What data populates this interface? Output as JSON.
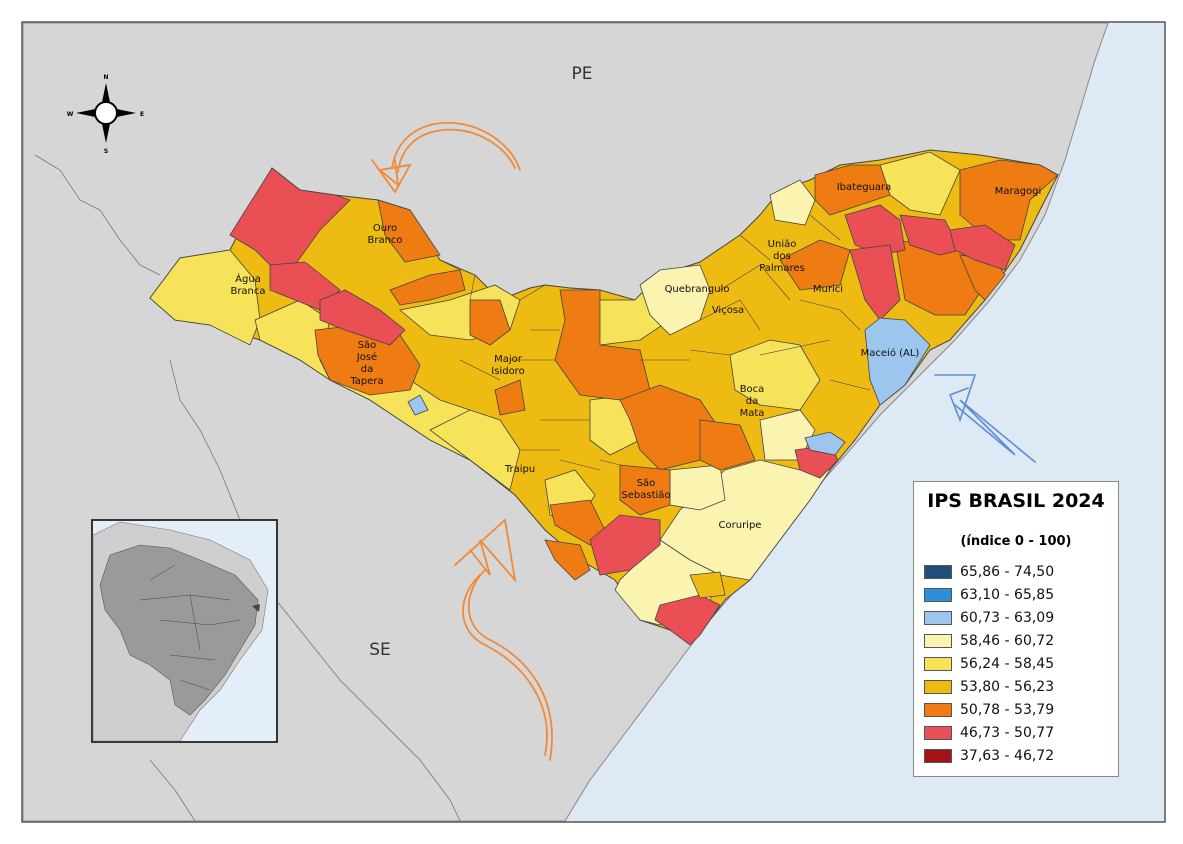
{
  "map": {
    "neighbor_states": [
      "PE",
      "SE"
    ],
    "compass": {
      "n": "N",
      "s": "S",
      "e": "E",
      "w": "W"
    },
    "municipality_labels": [
      "Ouro Branco",
      "Água Branca",
      "São José da Tapera",
      "Major Isidoro",
      "Traipu",
      "São Sebastião",
      "Coruripe",
      "Quebrangulo",
      "Viçosa",
      "União dos Palmares",
      "Murici",
      "Maceió (AL)",
      "Boca da Mata",
      "Ibateguara",
      "Maragogi"
    ]
  },
  "legend": {
    "title": "IPS BRASIL 2024",
    "subtitle": "(índice 0 - 100)",
    "classes": [
      {
        "label": "65,86 - 74,50",
        "color": "#1f4e79"
      },
      {
        "label": "63,10 - 65,85",
        "color": "#2b8fd9"
      },
      {
        "label": "60,73 - 63,09",
        "color": "#9cc6ee"
      },
      {
        "label": "58,46 - 60,72",
        "color": "#fbf3b0"
      },
      {
        "label": "56,24 - 58,45",
        "color": "#f6e35a"
      },
      {
        "label": "53,80 - 56,23",
        "color": "#eebb12"
      },
      {
        "label": "50,78 - 53,79",
        "color": "#ee7c12"
      },
      {
        "label": "46,73 - 50,77",
        "color": "#ea4f55"
      },
      {
        "label": "37,63 - 46,72",
        "color": "#a11316"
      }
    ]
  },
  "colors": {
    "ocean": "#dde9f5",
    "land": "#d6d6d6",
    "arrow_orange": "#ee8a3a",
    "arrow_blue": "#5b8fd6"
  }
}
